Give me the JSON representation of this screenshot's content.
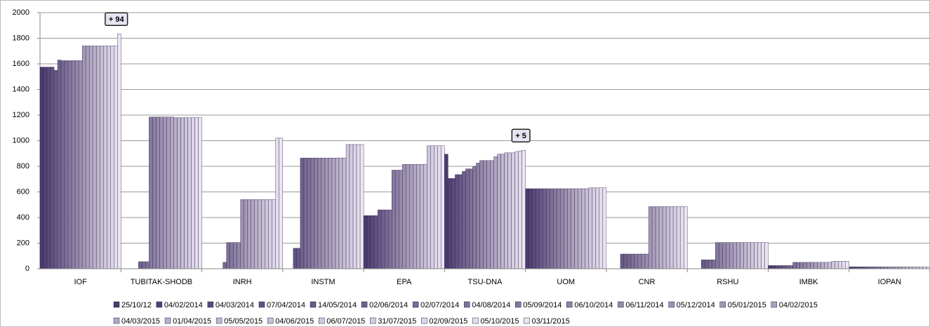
{
  "chart_data": {
    "type": "bar",
    "categories": [
      "IOF",
      "TUBITAK-SHODB",
      "INRH",
      "INSTM",
      "EPA",
      "TSU-DNA",
      "UOM",
      "CNR",
      "RSHU",
      "IMBK",
      "IOPAN"
    ],
    "ylim": [
      0,
      2000
    ],
    "yticks": [
      0,
      200,
      400,
      600,
      800,
      1000,
      1200,
      1400,
      1600,
      1800,
      2000
    ],
    "grid": true,
    "legend": "bottom",
    "annotations": [
      {
        "text": "+ 94",
        "category": "IOF",
        "series": "03/11/2015"
      },
      {
        "text": "+ 5",
        "category": "TSU-DNA",
        "series": "03/11/2015"
      }
    ],
    "series": [
      {
        "name": "25/10/12",
        "color": "#4b3a6e",
        "values": [
          1575,
          0,
          0,
          0,
          415,
          895,
          625,
          0,
          0,
          25,
          15
        ]
      },
      {
        "name": "04/02/2014",
        "color": "#524274",
        "values": [
          1575,
          0,
          0,
          0,
          415,
          705,
          625,
          0,
          0,
          25,
          15
        ]
      },
      {
        "name": "04/03/2014",
        "color": "#5a4a7a",
        "values": [
          1575,
          0,
          0,
          0,
          415,
          705,
          625,
          0,
          0,
          25,
          15
        ]
      },
      {
        "name": "07/04/2014",
        "color": "#615180",
        "values": [
          1575,
          0,
          0,
          160,
          415,
          735,
          625,
          0,
          0,
          25,
          15
        ]
      },
      {
        "name": "14/05/2014",
        "color": "#685986",
        "values": [
          1550,
          0,
          0,
          160,
          460,
          735,
          625,
          115,
          70,
          25,
          15
        ]
      },
      {
        "name": "02/06/2014",
        "color": "#70618c",
        "values": [
          1630,
          55,
          0,
          865,
          460,
          760,
          625,
          115,
          70,
          25,
          15
        ]
      },
      {
        "name": "02/07/2014",
        "color": "#776993",
        "values": [
          1625,
          55,
          50,
          865,
          460,
          780,
          625,
          115,
          70,
          25,
          15
        ]
      },
      {
        "name": "04/08/2014",
        "color": "#7e7199",
        "values": [
          1625,
          55,
          205,
          865,
          460,
          780,
          625,
          115,
          70,
          50,
          15
        ]
      },
      {
        "name": "05/09/2014",
        "color": "#86799f",
        "values": [
          1625,
          1185,
          205,
          865,
          770,
          800,
          625,
          115,
          205,
          50,
          15
        ]
      },
      {
        "name": "06/10/2014",
        "color": "#8d80a5",
        "values": [
          1625,
          1185,
          205,
          865,
          770,
          825,
          625,
          115,
          205,
          50,
          15
        ]
      },
      {
        "name": "06/11/2014",
        "color": "#9488ab",
        "values": [
          1625,
          1185,
          205,
          865,
          770,
          845,
          625,
          115,
          205,
          50,
          15
        ]
      },
      {
        "name": "05/12/2014",
        "color": "#9c90b1",
        "values": [
          1625,
          1185,
          540,
          865,
          815,
          845,
          625,
          115,
          205,
          50,
          15
        ]
      },
      {
        "name": "05/01/2015",
        "color": "#a398b7",
        "values": [
          1740,
          1185,
          540,
          865,
          815,
          845,
          625,
          485,
          205,
          50,
          15
        ]
      },
      {
        "name": "04/02/2015",
        "color": "#aaa0bd",
        "values": [
          1740,
          1185,
          540,
          865,
          815,
          845,
          625,
          485,
          205,
          50,
          15
        ]
      },
      {
        "name": "04/03/2015",
        "color": "#b1a7c3",
        "values": [
          1740,
          1185,
          540,
          865,
          815,
          875,
          625,
          485,
          205,
          50,
          15
        ]
      },
      {
        "name": "01/04/2015",
        "color": "#b9afc9",
        "values": [
          1740,
          1180,
          540,
          865,
          815,
          895,
          625,
          485,
          205,
          50,
          15
        ]
      },
      {
        "name": "05/05/2015",
        "color": "#c0b7cf",
        "values": [
          1740,
          1180,
          540,
          865,
          815,
          895,
          625,
          485,
          205,
          50,
          15
        ]
      },
      {
        "name": "04/06/2015",
        "color": "#c7bfd6",
        "values": [
          1740,
          1180,
          540,
          865,
          815,
          905,
          625,
          485,
          205,
          50,
          15
        ]
      },
      {
        "name": "06/07/2015",
        "color": "#cfc7dc",
        "values": [
          1740,
          1180,
          540,
          970,
          960,
          905,
          632,
          485,
          205,
          58,
          15
        ]
      },
      {
        "name": "31/07/2015",
        "color": "#d6cee2",
        "values": [
          1740,
          1180,
          540,
          970,
          960,
          905,
          632,
          485,
          205,
          58,
          15
        ]
      },
      {
        "name": "02/09/2015",
        "color": "#ddd6e8",
        "values": [
          1740,
          1180,
          540,
          970,
          960,
          915,
          632,
          485,
          205,
          58,
          15
        ]
      },
      {
        "name": "05/10/2015",
        "color": "#e5deee",
        "values": [
          1740,
          1180,
          1020,
          970,
          960,
          920,
          632,
          485,
          205,
          58,
          15
        ]
      },
      {
        "name": "03/11/2015",
        "color": "#ece6f4",
        "values": [
          1834,
          1180,
          1020,
          970,
          960,
          925,
          632,
          485,
          205,
          58,
          15
        ]
      }
    ]
  }
}
